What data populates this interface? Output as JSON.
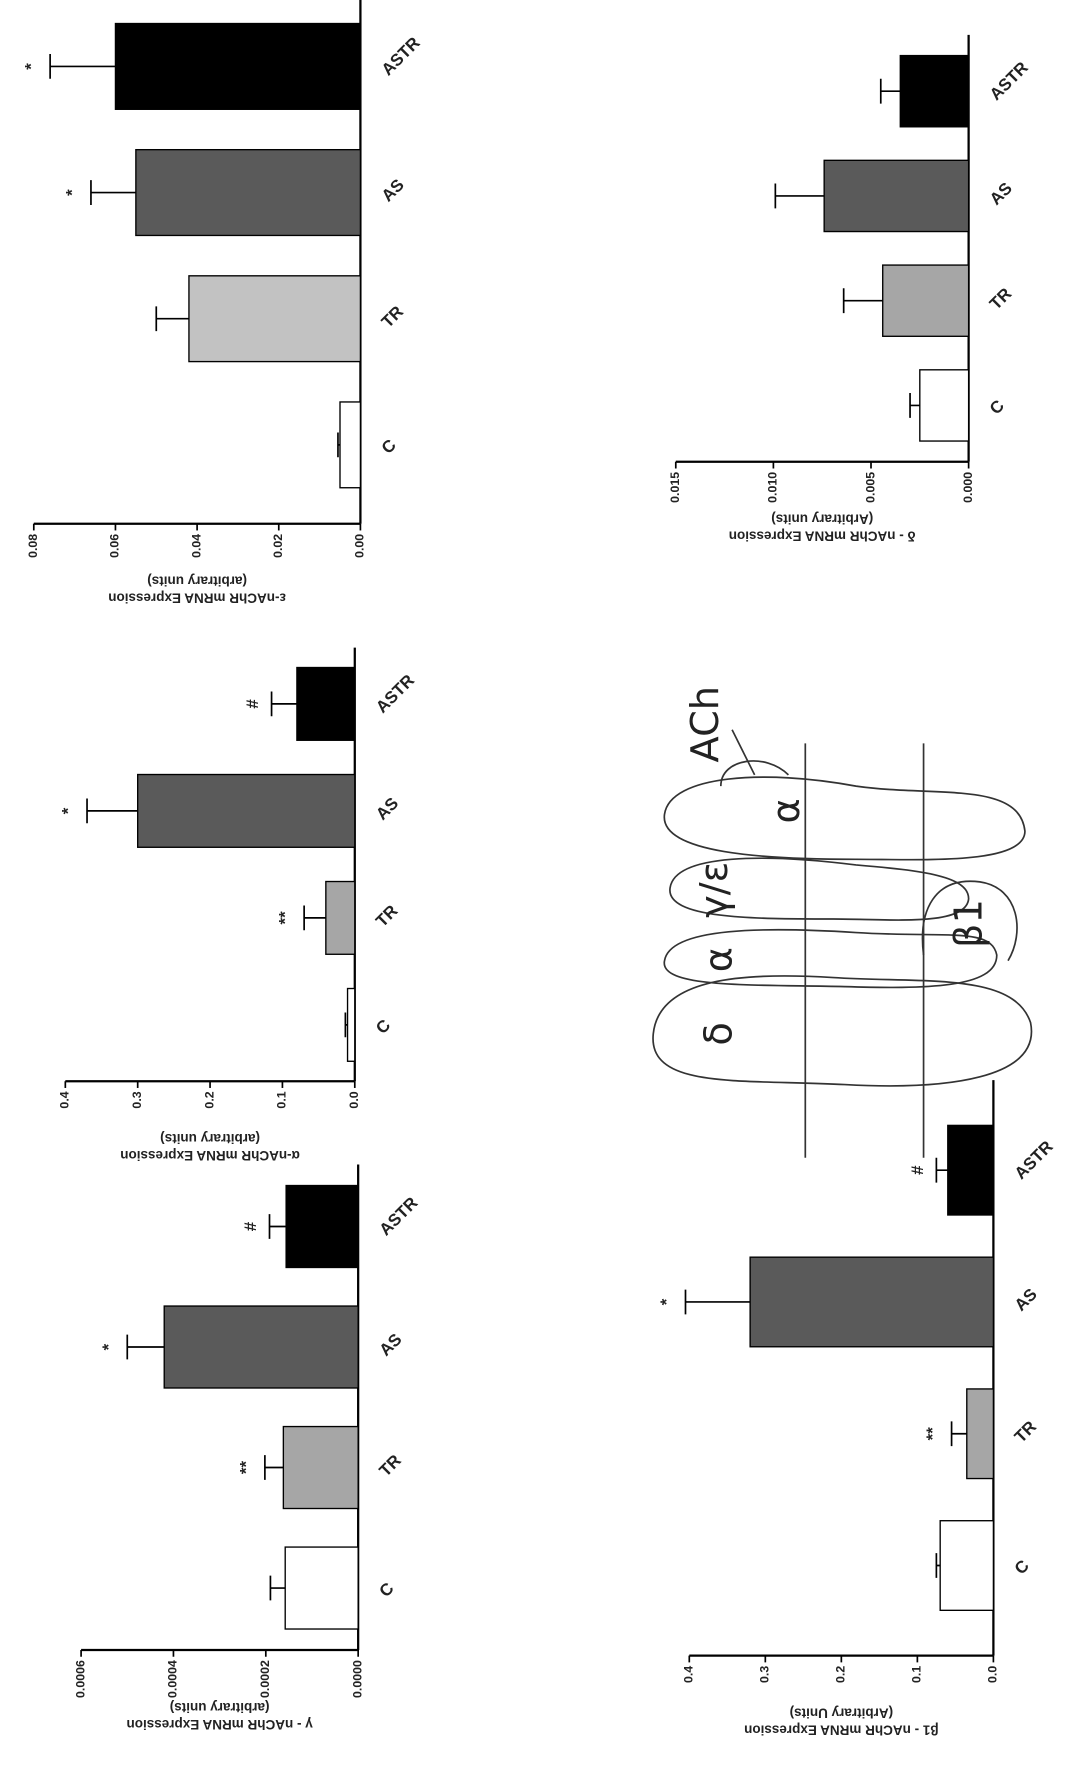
{
  "chart_data": [
    {
      "type": "bar",
      "ylabel": [
        "γ - nAChR mRNA Expression",
        "(arbitrary units)"
      ],
      "categories": [
        "C",
        "TR",
        "AS",
        "ASTR"
      ],
      "values": [
        0.000158,
        0.000162,
        0.00042,
        0.000156
      ],
      "errors": [
        3.2e-05,
        4e-05,
        8e-05,
        3.6e-05
      ],
      "annotations": [
        null,
        "**",
        "*",
        "#"
      ],
      "colors": [
        "#ffffff",
        "#a6a6a6",
        "#5a5a5a",
        "#000000"
      ],
      "ylim": [
        0,
        0.0006
      ],
      "yticks": [
        {
          "value": 0,
          "label": "0.0000"
        },
        0.0002,
        0.0004,
        0.0006
      ]
    },
    {
      "type": "bar",
      "ylabel": [
        "α-nAChR mRNA Expression",
        "(arbitrary units)"
      ],
      "categories": [
        "C",
        "TR",
        "AS",
        "ASTR"
      ],
      "values": [
        0.01,
        0.04,
        0.3,
        0.08
      ],
      "errors": [
        0.003,
        0.03,
        0.07,
        0.035
      ],
      "annotations": [
        null,
        "**",
        "*",
        "#"
      ],
      "colors": [
        "#ffffff",
        "#a6a6a6",
        "#5a5a5a",
        "#000000"
      ],
      "ylim": [
        0,
        0.4
      ],
      "yticks": [
        {
          "value": 0,
          "label": "0.0"
        },
        0.1,
        0.2,
        0.3,
        0.4
      ]
    },
    {
      "type": "bar",
      "ylabel": [
        "ε-nAChR mRNA Expression",
        "(arbitrary units)"
      ],
      "categories": [
        "C",
        "TR",
        "AS",
        "ASTR"
      ],
      "values": [
        0.005,
        0.042,
        0.055,
        0.06
      ],
      "errors": [
        0.0005,
        0.008,
        0.011,
        0.016
      ],
      "annotations": [
        null,
        null,
        "*",
        "*"
      ],
      "colors": [
        "#ffffff",
        "#c2c2c2",
        "#5a5a5a",
        "#000000"
      ],
      "ylim": [
        0,
        0.08
      ],
      "yticks": [
        {
          "value": 0,
          "label": "0.00"
        },
        0.02,
        0.04,
        0.06,
        0.08
      ]
    },
    {
      "type": "bar",
      "ylabel": [
        "β1 - nAChR mRNA Expression",
        "(Arbitrary Units)"
      ],
      "categories": [
        "C",
        "TR",
        "AS",
        "ASTR"
      ],
      "values": [
        0.07,
        0.035,
        0.32,
        0.06
      ],
      "errors": [
        0.005,
        0.02,
        0.085,
        0.015
      ],
      "annotations": [
        null,
        "**",
        "*",
        "#"
      ],
      "colors": [
        "#ffffff",
        "#a6a6a6",
        "#5a5a5a",
        "#000000"
      ],
      "ylim": [
        0,
        0.4
      ],
      "yticks": [
        {
          "value": 0,
          "label": "0.0"
        },
        0.1,
        0.2,
        0.3,
        0.4
      ]
    },
    {
      "type": "bar",
      "ylabel": [
        "δ - nAChR mRNA Expression",
        "(Arbitrary units)"
      ],
      "categories": [
        "C",
        "TR",
        "AS",
        "ASTR"
      ],
      "values": [
        0.0025,
        0.0044,
        0.0074,
        0.0035
      ],
      "errors": [
        0.0005,
        0.002,
        0.0025,
        0.001
      ],
      "annotations": [
        null,
        null,
        null,
        null
      ],
      "colors": [
        "#ffffff",
        "#a6a6a6",
        "#5a5a5a",
        "#000000"
      ],
      "ylim": [
        0,
        0.015
      ],
      "yticks": [
        {
          "value": 0,
          "label": "0.000"
        },
        0.005,
        {
          "value": 0.01,
          "label": "0.010"
        },
        0.015
      ]
    }
  ],
  "diagram": {
    "labels": [
      "δ",
      "α",
      "γ/ε",
      "α",
      "β1",
      "ACh"
    ]
  }
}
